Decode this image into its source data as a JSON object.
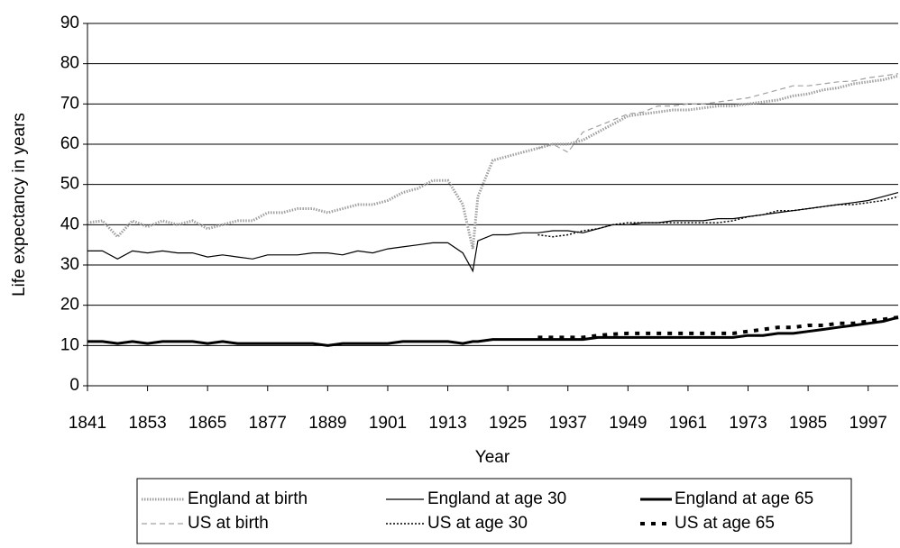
{
  "chart_data": {
    "type": "line",
    "y_label": "Life expectancy in years",
    "x_label": "Year",
    "xlim": [
      1841,
      2003
    ],
    "xticks": [
      1841,
      1853,
      1865,
      1877,
      1889,
      1901,
      1913,
      1925,
      1937,
      1949,
      1961,
      1973,
      1985,
      1997
    ],
    "ylim": [
      0,
      90
    ],
    "yticks": [
      0,
      10,
      20,
      30,
      40,
      50,
      60,
      70,
      80,
      90
    ],
    "grid": true,
    "legend": "bottom",
    "x": [
      1841,
      1844,
      1847,
      1850,
      1853,
      1856,
      1859,
      1862,
      1865,
      1868,
      1871,
      1874,
      1877,
      1880,
      1883,
      1886,
      1889,
      1892,
      1895,
      1898,
      1901,
      1904,
      1907,
      1910,
      1913,
      1916,
      1918,
      1919,
      1922,
      1925,
      1928,
      1931,
      1934,
      1937,
      1940,
      1943,
      1946,
      1949,
      1952,
      1955,
      1958,
      1961,
      1964,
      1967,
      1970,
      1973,
      1976,
      1979,
      1982,
      1985,
      1988,
      1991,
      1994,
      1997,
      2000,
      2003
    ],
    "series": [
      {
        "name": "England at birth",
        "color": "#a0a0a0",
        "width": 3,
        "dash": "1.5 1.5",
        "values": [
          40.5,
          41,
          37,
          41,
          39.5,
          41,
          40,
          41,
          39,
          40,
          41,
          41,
          43,
          43,
          44,
          44,
          43,
          44,
          45,
          45,
          46,
          48,
          49,
          51,
          51,
          45,
          34,
          47,
          56,
          57,
          58,
          59,
          60,
          60,
          61,
          63,
          65,
          67,
          67.5,
          68,
          68.5,
          68.5,
          69,
          69.5,
          69.5,
          70,
          70.5,
          71,
          72,
          72.5,
          73.5,
          74,
          75,
          75.5,
          76,
          77
        ]
      },
      {
        "name": "England at age 30",
        "color": "#000000",
        "width": 1.2,
        "dash": "none",
        "values": [
          33.5,
          33.5,
          31.5,
          33.5,
          33,
          33.5,
          33,
          33,
          32,
          32.5,
          32,
          31.5,
          32.5,
          32.5,
          32.5,
          33,
          33,
          32.5,
          33.5,
          33,
          34,
          34.5,
          35,
          35.5,
          35.5,
          33,
          28.5,
          36,
          37.5,
          37.5,
          38,
          38,
          38.5,
          38.5,
          38,
          39,
          40,
          40,
          40.5,
          40.5,
          41,
          41,
          41,
          41.5,
          41.5,
          42,
          42.5,
          43,
          43.5,
          44,
          44.5,
          45,
          45.5,
          46,
          47,
          48
        ]
      },
      {
        "name": "England at age 65",
        "color": "#000000",
        "width": 3,
        "dash": "none",
        "values": [
          11,
          11,
          10.5,
          11,
          10.5,
          11,
          11,
          11,
          10.5,
          11,
          10.5,
          10.5,
          10.5,
          10.5,
          10.5,
          10.5,
          10,
          10.5,
          10.5,
          10.5,
          10.5,
          11,
          11,
          11,
          11,
          10.5,
          11,
          11,
          11.5,
          11.5,
          11.5,
          11.5,
          11.5,
          11.5,
          11.5,
          12,
          12,
          12,
          12,
          12,
          12,
          12,
          12,
          12,
          12,
          12.5,
          12.5,
          13,
          13,
          13.5,
          14,
          14.5,
          15,
          15.5,
          16,
          17
        ]
      },
      {
        "name": "US at birth",
        "color": "#a0a0a0",
        "width": 1.2,
        "dash": "6 4",
        "values": [
          null,
          null,
          null,
          null,
          null,
          null,
          null,
          null,
          null,
          null,
          null,
          null,
          null,
          null,
          null,
          null,
          null,
          null,
          null,
          null,
          null,
          null,
          null,
          null,
          null,
          null,
          null,
          null,
          null,
          null,
          null,
          59,
          60,
          58,
          63,
          64.5,
          66,
          67.5,
          68,
          69.5,
          69.5,
          70,
          70,
          70.5,
          71,
          71.5,
          72.5,
          73.5,
          74.5,
          74.5,
          75,
          75.5,
          75.7,
          76.5,
          77,
          77.5
        ]
      },
      {
        "name": "US at age 30",
        "color": "#000000",
        "width": 1.5,
        "dash": "2 2",
        "values": [
          null,
          null,
          null,
          null,
          null,
          null,
          null,
          null,
          null,
          null,
          null,
          null,
          null,
          null,
          null,
          null,
          null,
          null,
          null,
          null,
          null,
          null,
          null,
          null,
          null,
          null,
          null,
          null,
          null,
          null,
          null,
          37.5,
          37,
          37.5,
          38.5,
          39,
          40,
          40.5,
          40.5,
          40.5,
          40.5,
          40.5,
          40.5,
          40.5,
          41,
          42,
          42.5,
          43.5,
          43.5,
          44,
          44.5,
          45,
          45,
          45.5,
          46,
          47
        ]
      },
      {
        "name": "US at age 65",
        "color": "#000000",
        "width": 4,
        "dash": "5 7",
        "values": [
          null,
          null,
          null,
          null,
          null,
          null,
          null,
          null,
          null,
          null,
          null,
          null,
          null,
          null,
          null,
          null,
          null,
          null,
          null,
          null,
          null,
          null,
          null,
          null,
          null,
          null,
          null,
          null,
          null,
          null,
          null,
          12,
          12,
          12,
          12,
          12.5,
          12.8,
          13,
          13,
          13,
          13,
          13,
          13,
          13,
          13,
          13.5,
          14,
          14.5,
          14.5,
          15,
          15,
          15.5,
          15.5,
          16,
          16.5,
          17
        ]
      }
    ]
  }
}
